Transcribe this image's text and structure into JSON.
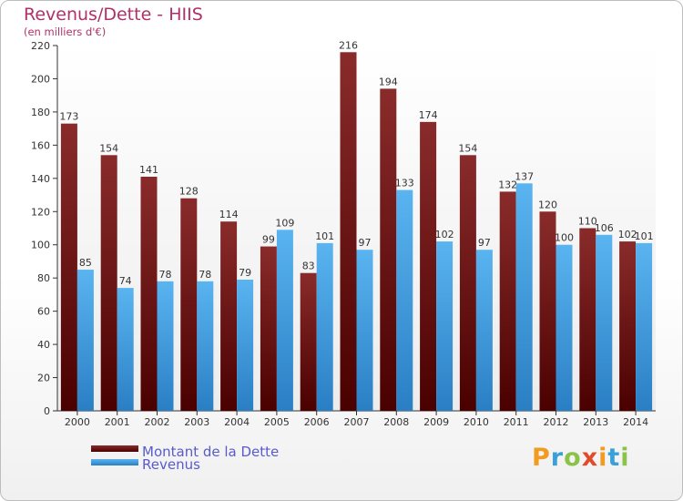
{
  "title": "Revenus/Dette - HIIS",
  "subtitle": "(en milliers d'€)",
  "logo": "Proxiti",
  "colors": {
    "dette": "#7a1515",
    "revenus": "#3ea1e6",
    "title": "#b0306a",
    "legend_text": "#5a5ad0"
  },
  "legend": [
    {
      "label": "Montant de la Dette",
      "color": "#7a1515"
    },
    {
      "label": "Revenus",
      "color": "#3ea1e6"
    }
  ],
  "chart_data": {
    "type": "bar",
    "title": "Revenus/Dette - HIIS",
    "subtitle": "(en milliers d'€)",
    "categories": [
      "2000",
      "2001",
      "2002",
      "2003",
      "2004",
      "2005",
      "2006",
      "2007",
      "2008",
      "2009",
      "2010",
      "2011",
      "2012",
      "2013",
      "2014"
    ],
    "series": [
      {
        "name": "Montant de la Dette",
        "values": [
          173,
          154,
          141,
          128,
          114,
          99,
          83,
          216,
          194,
          174,
          154,
          132,
          120,
          110,
          102
        ]
      },
      {
        "name": "Revenus",
        "values": [
          85,
          74,
          78,
          78,
          79,
          109,
          101,
          97,
          133,
          102,
          97,
          137,
          100,
          106,
          101
        ]
      }
    ],
    "ylim": [
      0,
      220
    ],
    "yticks": [
      0,
      20,
      40,
      60,
      80,
      100,
      120,
      140,
      160,
      180,
      200,
      220
    ],
    "grid": false,
    "legend_position": "bottom-left"
  }
}
